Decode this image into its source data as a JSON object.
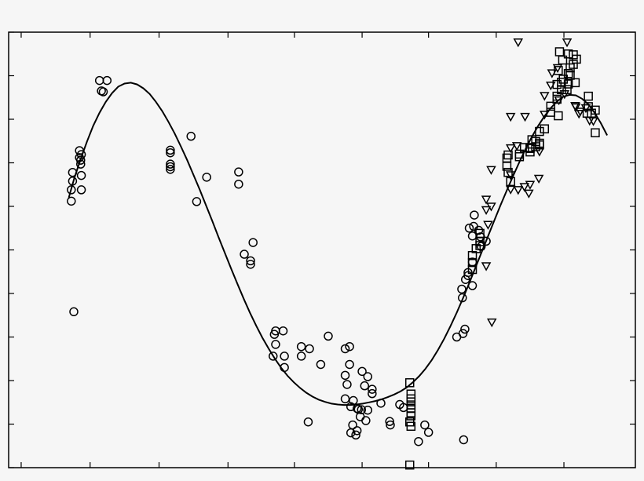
{
  "chart_data": {
    "type": "scatter",
    "title": "",
    "xlabel": "",
    "ylabel": "",
    "xlim": [
      0,
      100
    ],
    "ylim": [
      0,
      100
    ],
    "grid": false,
    "legend": "none",
    "series": [
      {
        "marker": "circle",
        "points": [
          [
            10.0,
            63.8
          ],
          [
            10.0,
            61.2
          ],
          [
            10.2,
            65.8
          ],
          [
            10.2,
            67.8
          ],
          [
            10.4,
            35.8
          ],
          [
            11.3,
            71.2
          ],
          [
            11.3,
            72.8
          ],
          [
            11.5,
            69.7
          ],
          [
            11.5,
            70.6
          ],
          [
            11.6,
            71.9
          ],
          [
            11.6,
            67.1
          ],
          [
            11.6,
            63.8
          ],
          [
            14.5,
            88.9
          ],
          [
            15.1,
            86.3
          ],
          [
            15.7,
            88.9
          ],
          [
            14.8,
            86.5
          ],
          [
            25.8,
            72.9
          ],
          [
            25.8,
            72.3
          ],
          [
            25.8,
            69.7
          ],
          [
            25.8,
            69.1
          ],
          [
            25.8,
            68.5
          ],
          [
            29.1,
            76.1
          ],
          [
            31.6,
            66.7
          ],
          [
            30.0,
            61.1
          ],
          [
            36.7,
            67.9
          ],
          [
            36.7,
            65.1
          ],
          [
            37.6,
            49.0
          ],
          [
            39.0,
            51.7
          ],
          [
            38.6,
            47.5
          ],
          [
            38.6,
            46.7
          ],
          [
            42.6,
            31.4
          ],
          [
            42.4,
            30.6
          ],
          [
            42.6,
            28.3
          ],
          [
            43.8,
            31.4
          ],
          [
            42.2,
            25.6
          ],
          [
            44.0,
            25.6
          ],
          [
            44.0,
            23.0
          ],
          [
            46.7,
            25.6
          ],
          [
            48.0,
            27.3
          ],
          [
            46.7,
            27.8
          ],
          [
            49.8,
            23.7
          ],
          [
            47.8,
            10.5
          ],
          [
            51.0,
            30.2
          ],
          [
            53.7,
            27.3
          ],
          [
            54.4,
            27.8
          ],
          [
            54.4,
            23.7
          ],
          [
            53.7,
            21.2
          ],
          [
            54.0,
            19.1
          ],
          [
            53.7,
            15.8
          ],
          [
            55.0,
            15.4
          ],
          [
            56.4,
            22.1
          ],
          [
            56.8,
            18.8
          ],
          [
            57.3,
            20.9
          ],
          [
            58.0,
            18.0
          ],
          [
            54.6,
            14.0
          ],
          [
            55.6,
            13.6
          ],
          [
            56.3,
            13.3
          ],
          [
            57.3,
            13.2
          ],
          [
            55.6,
            8.5
          ],
          [
            55.8,
            13.4
          ],
          [
            54.9,
            9.8
          ],
          [
            56.1,
            11.7
          ],
          [
            54.6,
            8.0
          ],
          [
            55.4,
            7.5
          ],
          [
            57.0,
            10.8
          ],
          [
            58.0,
            17.0
          ],
          [
            59.4,
            14.8
          ],
          [
            60.8,
            10.6
          ],
          [
            60.9,
            9.8
          ],
          [
            62.4,
            14.5
          ],
          [
            63.0,
            13.8
          ],
          [
            65.4,
            6.0
          ],
          [
            66.4,
            9.8
          ],
          [
            67.0,
            8.1
          ],
          [
            71.5,
            30.0
          ],
          [
            72.5,
            30.8
          ],
          [
            72.8,
            31.8
          ],
          [
            72.4,
            39.0
          ],
          [
            72.9,
            43.2
          ],
          [
            73.3,
            44.1
          ],
          [
            73.3,
            44.8
          ],
          [
            72.3,
            41.0
          ],
          [
            74.0,
            41.8
          ],
          [
            74.0,
            47.2
          ],
          [
            73.5,
            55.0
          ],
          [
            74.3,
            58.0
          ],
          [
            75.0,
            54.5
          ],
          [
            75.3,
            53.0
          ],
          [
            75.4,
            50.8
          ],
          [
            76.2,
            52.0
          ],
          [
            72.6,
            6.4
          ],
          [
            74.2,
            55.4
          ],
          [
            74.0,
            53.2
          ]
        ]
      },
      {
        "marker": "square",
        "points": [
          [
            64.0,
            19.5
          ],
          [
            64.2,
            16.9
          ],
          [
            64.2,
            15.8
          ],
          [
            64.2,
            15.1
          ],
          [
            64.2,
            14.4
          ],
          [
            64.2,
            13.6
          ],
          [
            64.2,
            12.6
          ],
          [
            64.2,
            11.9
          ],
          [
            64.0,
            10.5
          ],
          [
            64.2,
            9.5
          ],
          [
            64.0,
            0.6
          ],
          [
            74.0,
            45.5
          ],
          [
            74.0,
            47.1
          ],
          [
            74.0,
            48.7
          ],
          [
            74.6,
            50.3
          ],
          [
            75.2,
            51.0
          ],
          [
            75.2,
            51.9
          ],
          [
            75.2,
            53.8
          ],
          [
            79.5,
            71.1
          ],
          [
            79.7,
            71.8
          ],
          [
            79.5,
            69.2
          ],
          [
            79.7,
            67.8
          ],
          [
            80.1,
            65.7
          ],
          [
            81.5,
            71.4
          ],
          [
            81.5,
            72.0
          ],
          [
            82.3,
            73.5
          ],
          [
            83.2,
            72.5
          ],
          [
            83.2,
            73.3
          ],
          [
            84.1,
            73.7
          ],
          [
            84.7,
            74.1
          ],
          [
            84.7,
            77.2
          ],
          [
            85.5,
            77.8
          ],
          [
            86.5,
            83.0
          ],
          [
            87.5,
            84.6
          ],
          [
            87.5,
            88.0
          ],
          [
            88.2,
            86.8
          ],
          [
            88.2,
            88.5
          ],
          [
            87.7,
            91.2
          ],
          [
            88.5,
            89.2
          ],
          [
            89.1,
            86.8
          ],
          [
            89.3,
            88.1
          ],
          [
            89.6,
            90.1
          ],
          [
            89.6,
            91.8
          ],
          [
            90.6,
            93.8
          ],
          [
            90.1,
            94.8
          ],
          [
            90.4,
            88.4
          ],
          [
            90.1,
            92.6
          ],
          [
            88.4,
            93.6
          ],
          [
            87.9,
            95.5
          ],
          [
            89.3,
            95.0
          ],
          [
            89.3,
            90.5
          ],
          [
            92.5,
            85.3
          ],
          [
            92.5,
            82.9
          ],
          [
            93.6,
            82.1
          ],
          [
            93.0,
            81.4
          ],
          [
            92.3,
            81.4
          ],
          [
            93.6,
            76.9
          ],
          [
            87.5,
            85.3
          ],
          [
            87.7,
            80.8
          ],
          [
            86.5,
            81.6
          ],
          [
            84.7,
            74.5
          ],
          [
            84.1,
            74.9
          ],
          [
            83.5,
            75.3
          ],
          [
            83.2,
            73.5
          ]
        ]
      },
      {
        "marker": "triangle-down",
        "points": [
          [
            81.3,
            97.7
          ],
          [
            89.1,
            97.7
          ],
          [
            80.1,
            80.6
          ],
          [
            82.4,
            80.6
          ],
          [
            76.2,
            61.6
          ],
          [
            76.2,
            59.2
          ],
          [
            76.2,
            46.3
          ],
          [
            77.1,
            33.4
          ],
          [
            80.1,
            63.9
          ],
          [
            80.1,
            67.2
          ],
          [
            81.3,
            63.8
          ],
          [
            83.0,
            63.0
          ],
          [
            83.2,
            65.0
          ],
          [
            84.7,
            72.6
          ],
          [
            85.5,
            81.1
          ],
          [
            85.5,
            85.4
          ],
          [
            86.5,
            87.8
          ],
          [
            86.7,
            90.6
          ],
          [
            87.6,
            91.8
          ],
          [
            88.7,
            85.8
          ],
          [
            90.4,
            83.1
          ],
          [
            91.2,
            81.8
          ],
          [
            92.1,
            82.6
          ],
          [
            92.7,
            79.7
          ],
          [
            82.3,
            64.5
          ],
          [
            80.1,
            73.4
          ],
          [
            81.1,
            73.9
          ],
          [
            84.6,
            66.4
          ],
          [
            87.8,
            84.4
          ],
          [
            90.5,
            82.8
          ],
          [
            91.0,
            81.3
          ],
          [
            93.3,
            79.6
          ],
          [
            77.0,
            68.4
          ],
          [
            77.0,
            60.0
          ],
          [
            76.5,
            55.8
          ]
        ]
      }
    ],
    "fit_curve": [
      [
        9.6,
        62.0
      ],
      [
        10.5,
        66.6
      ],
      [
        11.5,
        70.9
      ],
      [
        12.5,
        74.9
      ],
      [
        13.5,
        78.5
      ],
      [
        14.5,
        81.5
      ],
      [
        15.5,
        84.0
      ],
      [
        16.5,
        86.0
      ],
      [
        17.5,
        87.5
      ],
      [
        18.5,
        88.2
      ],
      [
        19.5,
        88.4
      ],
      [
        20.5,
        88.0
      ],
      [
        21.5,
        87.1
      ],
      [
        22.5,
        85.8
      ],
      [
        23.5,
        84.0
      ],
      [
        24.5,
        81.9
      ],
      [
        25.5,
        79.4
      ],
      [
        26.5,
        76.7
      ],
      [
        27.5,
        73.7
      ],
      [
        28.5,
        70.6
      ],
      [
        29.5,
        67.2
      ],
      [
        30.5,
        63.8
      ],
      [
        31.5,
        60.2
      ],
      [
        32.5,
        56.6
      ],
      [
        33.5,
        52.9
      ],
      [
        34.5,
        49.3
      ],
      [
        35.5,
        45.7
      ],
      [
        36.5,
        42.2
      ],
      [
        37.5,
        38.8
      ],
      [
        38.5,
        35.6
      ],
      [
        39.5,
        32.6
      ],
      [
        40.5,
        29.8
      ],
      [
        41.5,
        27.3
      ],
      [
        42.5,
        25.0
      ],
      [
        43.5,
        22.9
      ],
      [
        44.5,
        21.1
      ],
      [
        45.5,
        19.6
      ],
      [
        46.5,
        18.3
      ],
      [
        47.5,
        17.2
      ],
      [
        48.5,
        16.3
      ],
      [
        49.5,
        15.6
      ],
      [
        50.5,
        15.1
      ],
      [
        51.5,
        14.7
      ],
      [
        52.5,
        14.5
      ],
      [
        53.5,
        14.4
      ],
      [
        54.5,
        14.4
      ],
      [
        55.5,
        14.5
      ],
      [
        56.5,
        14.7
      ],
      [
        57.5,
        15.0
      ],
      [
        58.5,
        15.3
      ],
      [
        59.5,
        15.7
      ],
      [
        60.5,
        16.2
      ],
      [
        61.5,
        16.8
      ],
      [
        62.5,
        17.5
      ],
      [
        63.5,
        18.4
      ],
      [
        64.5,
        19.6
      ],
      [
        65.5,
        21.0
      ],
      [
        66.5,
        22.7
      ],
      [
        67.5,
        24.7
      ],
      [
        68.5,
        27.0
      ],
      [
        69.5,
        29.6
      ],
      [
        70.5,
        32.5
      ],
      [
        71.5,
        35.6
      ],
      [
        72.5,
        38.9
      ],
      [
        73.5,
        42.4
      ],
      [
        74.5,
        46.0
      ],
      [
        75.5,
        49.6
      ],
      [
        76.5,
        53.2
      ],
      [
        77.5,
        56.8
      ],
      [
        78.5,
        60.3
      ],
      [
        79.5,
        63.7
      ],
      [
        80.5,
        67.0
      ],
      [
        81.5,
        70.2
      ],
      [
        82.5,
        73.2
      ],
      [
        83.5,
        76.0
      ],
      [
        84.5,
        78.5
      ],
      [
        85.5,
        80.7
      ],
      [
        86.5,
        82.6
      ],
      [
        87.5,
        84.1
      ],
      [
        88.5,
        85.2
      ],
      [
        89.5,
        85.6
      ],
      [
        90.5,
        85.5
      ],
      [
        91.5,
        84.7
      ],
      [
        92.5,
        83.4
      ],
      [
        93.5,
        81.5
      ],
      [
        94.5,
        79.1
      ],
      [
        95.5,
        76.3
      ]
    ],
    "x_ticks": [
      2,
      13,
      24,
      35,
      45.6,
      56.4,
      67,
      77.8,
      88.6
    ],
    "y_ticks": [
      0,
      10,
      20,
      30,
      40,
      50,
      60,
      70,
      80,
      90,
      100
    ]
  }
}
